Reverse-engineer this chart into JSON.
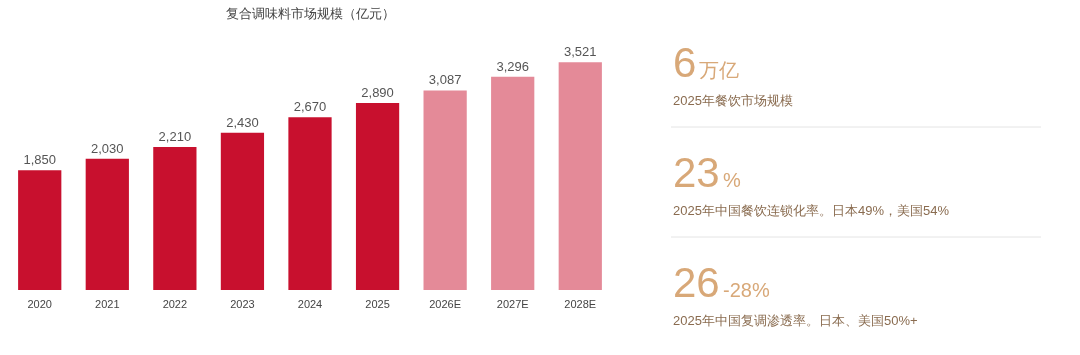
{
  "chart_data": [
    {
      "type": "bar",
      "title": "复合调味料市场规模（亿元）",
      "categories": [
        "2020",
        "2021",
        "2022",
        "2023",
        "2024",
        "2025",
        "2026E",
        "2027E",
        "2028E"
      ],
      "values": [
        1850,
        2030,
        2210,
        2430,
        2670,
        2890,
        3087,
        3296,
        3521
      ],
      "colors": [
        "#c8102e",
        "#c8102e",
        "#c8102e",
        "#c8102e",
        "#c8102e",
        "#c8102e",
        "#e48a98",
        "#e48a98",
        "#e48a98"
      ],
      "value_labels": [
        "1,850",
        "2,030",
        "2,210",
        "2,430",
        "2,670",
        "2,890",
        "3,087",
        "3,296",
        "3,521"
      ]
    },
    {
      "type": "other",
      "annotations": [
        "6万亿",
        "2025年餐饮市场规模",
        "23%",
        "2025年中国餐饮连锁化率。日本49%，美国54%",
        "26-28%",
        "2025年中国复调渗透率。日本、美国50%+"
      ]
    }
  ]
}
